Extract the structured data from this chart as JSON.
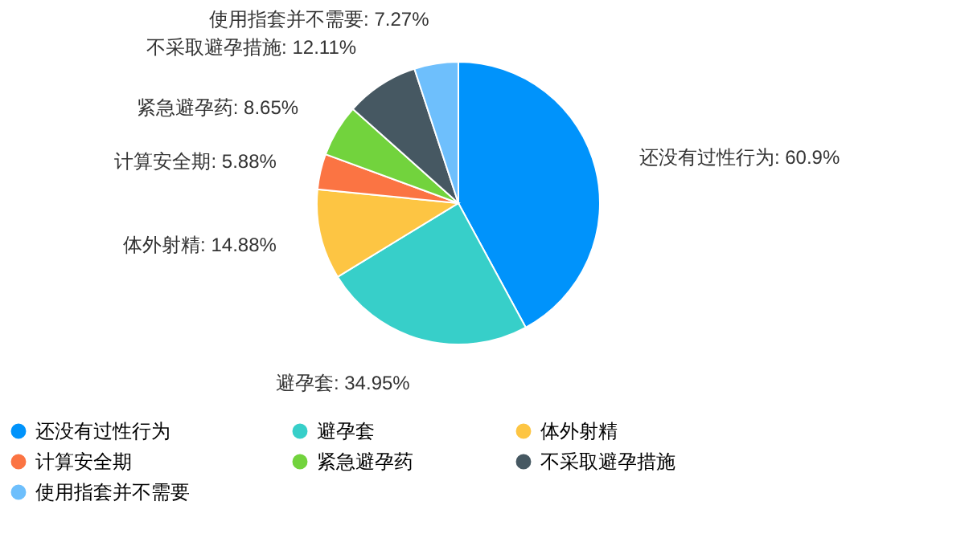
{
  "chart_data": {
    "type": "pie",
    "categories": [
      "还没有过性行为",
      "避孕套",
      "体外射精",
      "计算安全期",
      "紧急避孕药",
      "不采取避孕措施",
      "使用指套并不需要"
    ],
    "values": [
      60.9,
      34.95,
      14.88,
      5.88,
      8.65,
      12.11,
      7.27
    ],
    "value_labels": [
      "还没有过性行为: 60.9%",
      "避孕套: 34.95%",
      "体外射精: 14.88%",
      "计算安全期: 5.88%",
      "紧急避孕药: 8.65%",
      "不采取避孕措施: 12.11%",
      "使用指套并不需要: 7.27%"
    ],
    "colors": [
      "#0093fb",
      "#37cfc9",
      "#fdc543",
      "#fb7443",
      "#72d33d",
      "#465862",
      "#6ebffc"
    ],
    "legend": "bottom"
  }
}
